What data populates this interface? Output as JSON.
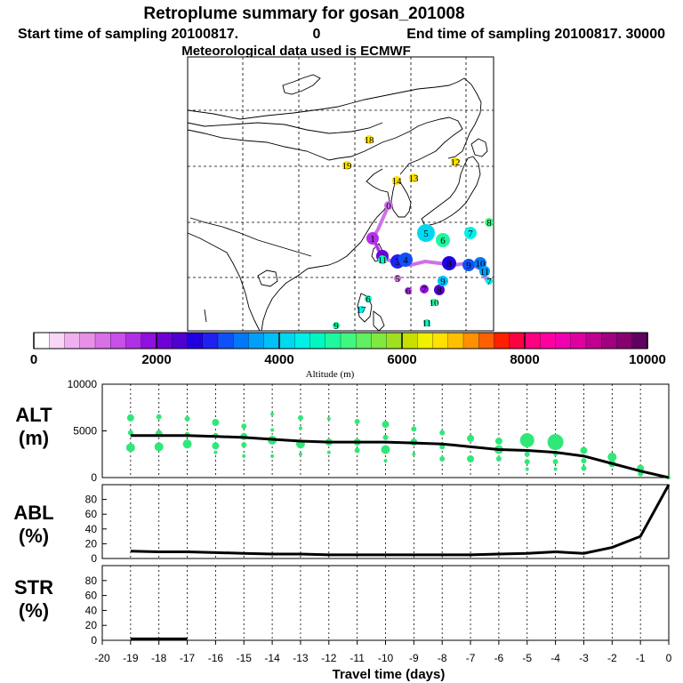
{
  "header": {
    "title": "Retroplume summary for gosan_201008",
    "start_label": "Start time of sampling 20100817.",
    "start_value": "0",
    "end_label": "End time of sampling 20100817. 30000",
    "met_label": "Meteorological data used is ECMWF"
  },
  "colorbar": {
    "label": "Altitude (m)",
    "ticks": [
      "0",
      "2000",
      "4000",
      "6000",
      "8000",
      "10000"
    ],
    "colors": [
      "#ffffff",
      "#f8d6f8",
      "#f0b0f0",
      "#e890e8",
      "#d870e8",
      "#c850e8",
      "#b030e8",
      "#9010e0",
      "#7000d8",
      "#5000d0",
      "#2000e0",
      "#2020f0",
      "#1050f8",
      "#0078f8",
      "#00a0f8",
      "#00c0f8",
      "#00d8f0",
      "#00f0e8",
      "#00f8c0",
      "#20f8a0",
      "#40f880",
      "#60f060",
      "#80e840",
      "#a0e020",
      "#c8e000",
      "#f0f000",
      "#ffe000",
      "#ffc000",
      "#ff9000",
      "#ff6000",
      "#ff2000",
      "#ff0040",
      "#ff0080",
      "#ff00a0",
      "#f000b0",
      "#e000a0",
      "#c00090",
      "#a00080",
      "#880070",
      "#600060"
    ]
  },
  "map": {
    "markers": [
      {
        "label": "0",
        "color": "#d070e8"
      },
      {
        "label": "1",
        "color": "#b030e8"
      },
      {
        "label": "2",
        "color": "#7000d8"
      },
      {
        "label": "3",
        "color": "#2020f0"
      },
      {
        "label": "4",
        "color": "#1050f8"
      },
      {
        "label": "5",
        "color": "#00d8f0"
      },
      {
        "label": "6",
        "color": "#20f8a0"
      },
      {
        "label": "7",
        "color": "#00f0e8"
      },
      {
        "label": "8",
        "color": "#2000e0"
      },
      {
        "label": "9",
        "color": "#1050f8"
      },
      {
        "label": "10",
        "color": "#0078f8"
      },
      {
        "label": "11",
        "color": "#00a0f8"
      },
      {
        "label": "5",
        "color": "#d070e8"
      },
      {
        "label": "6",
        "color": "#b030e8"
      },
      {
        "label": "7",
        "color": "#9010e0"
      },
      {
        "label": "8",
        "color": "#5000d0"
      },
      {
        "label": "9",
        "color": "#00c0f8"
      },
      {
        "label": "10",
        "color": "#20f8a0"
      },
      {
        "label": "11",
        "color": "#00f8c0"
      },
      {
        "label": "8",
        "color": "#40f880"
      },
      {
        "label": "7",
        "color": "#00f0e8"
      },
      {
        "label": "12",
        "color": "#ffe000"
      },
      {
        "label": "13",
        "color": "#ffe000"
      },
      {
        "label": "14",
        "color": "#ffe000"
      },
      {
        "label": "18",
        "color": "#ffe000"
      },
      {
        "label": "19",
        "color": "#ffe000"
      },
      {
        "label": "9",
        "color": "#20f8a0"
      },
      {
        "label": "17",
        "color": "#00f0e8"
      },
      {
        "label": "11",
        "color": "#00f8c0"
      },
      {
        "label": "6",
        "color": "#00f8c0"
      }
    ]
  },
  "chart_data": [
    {
      "type": "line",
      "panel": "ALT",
      "ylabel_line1": "ALT",
      "ylabel_line2": "(m)",
      "xlabel": "Travel time (days)",
      "xlim": [
        -20,
        0
      ],
      "ylim": [
        0,
        10000
      ],
      "yticks": [
        "0",
        "5000",
        "10000"
      ],
      "xticks": [
        "-20",
        "-19",
        "-18",
        "-17",
        "-16",
        "-15",
        "-14",
        "-13",
        "-12",
        "-11",
        "-10",
        "-9",
        "-8",
        "-7",
        "-6",
        "-5",
        "-4",
        "-3",
        "-2",
        "-1",
        "0"
      ],
      "mean_line": {
        "x": [
          0,
          -1,
          -2,
          -3,
          -4,
          -5,
          -6,
          -7,
          -8,
          -9,
          -10,
          -11,
          -12,
          -13,
          -14,
          -15,
          -16,
          -17,
          -18,
          -19
        ],
        "y": [
          0,
          700,
          1500,
          2300,
          2700,
          2900,
          3000,
          3300,
          3600,
          3700,
          3800,
          3800,
          3800,
          3900,
          4100,
          4300,
          4400,
          4500,
          4500,
          4500
        ]
      },
      "cluster_points": [
        {
          "x": -19,
          "y": 6400,
          "s": 4
        },
        {
          "x": -19,
          "y": 4800,
          "s": 3
        },
        {
          "x": -19,
          "y": 3200,
          "s": 5
        },
        {
          "x": -18,
          "y": 6500,
          "s": 3
        },
        {
          "x": -18,
          "y": 4700,
          "s": 4
        },
        {
          "x": -18,
          "y": 3300,
          "s": 5
        },
        {
          "x": -17,
          "y": 6300,
          "s": 3
        },
        {
          "x": -17,
          "y": 4600,
          "s": 3
        },
        {
          "x": -17,
          "y": 3600,
          "s": 5
        },
        {
          "x": -16,
          "y": 5900,
          "s": 4
        },
        {
          "x": -16,
          "y": 4500,
          "s": 3
        },
        {
          "x": -16,
          "y": 3400,
          "s": 4
        },
        {
          "x": -16,
          "y": 2700,
          "s": 2
        },
        {
          "x": -15,
          "y": 5500,
          "s": 3
        },
        {
          "x": -15,
          "y": 4400,
          "s": 4
        },
        {
          "x": -15,
          "y": 3500,
          "s": 3
        },
        {
          "x": -15,
          "y": 2300,
          "s": 2
        },
        {
          "x": -14,
          "y": 6800,
          "s": 2
        },
        {
          "x": -14,
          "y": 5100,
          "s": 2
        },
        {
          "x": -14,
          "y": 4000,
          "s": 5
        },
        {
          "x": -14,
          "y": 2300,
          "s": 2
        },
        {
          "x": -13,
          "y": 6400,
          "s": 3
        },
        {
          "x": -13,
          "y": 5300,
          "s": 2
        },
        {
          "x": -13,
          "y": 3600,
          "s": 5
        },
        {
          "x": -13,
          "y": 2500,
          "s": 2
        },
        {
          "x": -12,
          "y": 6300,
          "s": 2
        },
        {
          "x": -12,
          "y": 3800,
          "s": 4
        },
        {
          "x": -12,
          "y": 2700,
          "s": 2
        },
        {
          "x": -11,
          "y": 6000,
          "s": 3
        },
        {
          "x": -11,
          "y": 3800,
          "s": 4
        },
        {
          "x": -11,
          "y": 2900,
          "s": 3
        },
        {
          "x": -10,
          "y": 5700,
          "s": 4
        },
        {
          "x": -10,
          "y": 4300,
          "s": 3
        },
        {
          "x": -10,
          "y": 3000,
          "s": 5
        },
        {
          "x": -10,
          "y": 1800,
          "s": 2
        },
        {
          "x": -9,
          "y": 5200,
          "s": 3
        },
        {
          "x": -9,
          "y": 3800,
          "s": 4
        },
        {
          "x": -9,
          "y": 2500,
          "s": 2
        },
        {
          "x": -8,
          "y": 4800,
          "s": 3
        },
        {
          "x": -8,
          "y": 3300,
          "s": 3
        },
        {
          "x": -8,
          "y": 2000,
          "s": 3
        },
        {
          "x": -7,
          "y": 4200,
          "s": 4
        },
        {
          "x": -7,
          "y": 2000,
          "s": 4
        },
        {
          "x": -6,
          "y": 3900,
          "s": 4
        },
        {
          "x": -6,
          "y": 3000,
          "s": 5
        },
        {
          "x": -6,
          "y": 2000,
          "s": 3
        },
        {
          "x": -5,
          "y": 4000,
          "s": 8
        },
        {
          "x": -5,
          "y": 2500,
          "s": 3
        },
        {
          "x": -5,
          "y": 1700,
          "s": 3
        },
        {
          "x": -5,
          "y": 900,
          "s": 2
        },
        {
          "x": -4,
          "y": 3800,
          "s": 9
        },
        {
          "x": -4,
          "y": 2600,
          "s": 3
        },
        {
          "x": -4,
          "y": 1700,
          "s": 3
        },
        {
          "x": -4,
          "y": 900,
          "s": 2
        },
        {
          "x": -3,
          "y": 2900,
          "s": 4
        },
        {
          "x": -3,
          "y": 1800,
          "s": 3
        },
        {
          "x": -3,
          "y": 1000,
          "s": 3
        },
        {
          "x": -2,
          "y": 2200,
          "s": 5
        },
        {
          "x": -2,
          "y": 1500,
          "s": 4
        },
        {
          "x": -1,
          "y": 1000,
          "s": 4
        },
        {
          "x": -1,
          "y": 400,
          "s": 3
        },
        {
          "x": 0,
          "y": 0,
          "s": 2
        }
      ]
    },
    {
      "type": "line",
      "panel": "ABL",
      "ylabel_line1": "ABL",
      "ylabel_line2": "(%)",
      "ylim": [
        0,
        100
      ],
      "yticks": [
        "0",
        "20",
        "40",
        "60",
        "80"
      ],
      "x": [
        -19,
        -18,
        -17,
        -16,
        -15,
        -14,
        -13,
        -12,
        -11,
        -10,
        -9,
        -8,
        -7,
        -6,
        -5,
        -4,
        -3,
        -2,
        -1,
        0
      ],
      "y": [
        10,
        9,
        9,
        8,
        7,
        6,
        6,
        5,
        5,
        5,
        5,
        5,
        5,
        6,
        7,
        9,
        7,
        15,
        30,
        100
      ]
    },
    {
      "type": "line",
      "panel": "STR",
      "ylabel_line1": "STR",
      "ylabel_line2": "(%)",
      "ylim": [
        0,
        100
      ],
      "yticks": [
        "0",
        "20",
        "40",
        "60",
        "80"
      ],
      "x": [
        -19,
        -18,
        -17
      ],
      "y": [
        2,
        2,
        2
      ]
    }
  ]
}
